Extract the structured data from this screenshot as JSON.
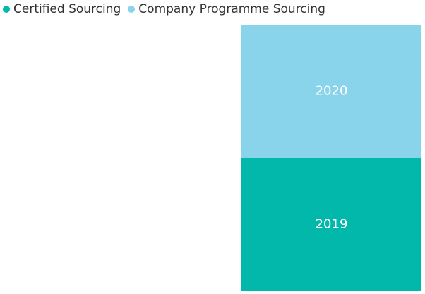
{
  "chart_data": {
    "type": "bar",
    "stacked": true,
    "categories": [
      ""
    ],
    "series": [
      {
        "name": "Certified Sourcing",
        "color": "#02B8AB",
        "values": [
          50
        ],
        "data_label": "2019"
      },
      {
        "name": "Company Programme Sourcing",
        "color": "#8AD4EB",
        "values": [
          50
        ],
        "data_label": "2020"
      }
    ],
    "ylim": [
      0,
      100
    ],
    "legend_position": "top-left",
    "grid": false,
    "axes_visible": false
  }
}
